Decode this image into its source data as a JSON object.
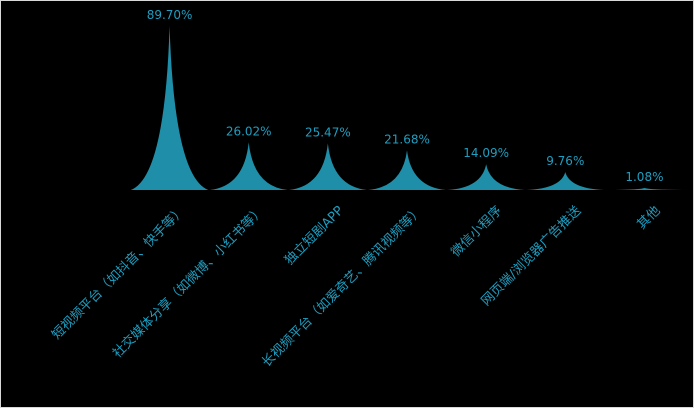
{
  "chart_data": {
    "type": "bar",
    "title": "",
    "xlabel": "",
    "ylabel": "",
    "ylim": [
      0,
      100
    ],
    "grid": false,
    "legend": "none",
    "colors": {
      "background": "#000000",
      "marks": "#1f8ea8",
      "labels": "#1f9ec0"
    },
    "categories": [
      "短视频平台（如抖音、快手等）",
      "社交媒体分享（如微博、小红书等）",
      "独立短剧APP",
      "长视频平台（如爱奇艺、腾讯视频等）",
      "微信小程序",
      "网页端/浏览器广告推送",
      "其他"
    ],
    "values": [
      89.7,
      26.02,
      25.47,
      21.68,
      14.09,
      9.76,
      1.08
    ],
    "value_labels": [
      "89.70%",
      "26.02%",
      "25.47%",
      "21.68%",
      "14.09%",
      "9.76%",
      "1.08%"
    ]
  }
}
